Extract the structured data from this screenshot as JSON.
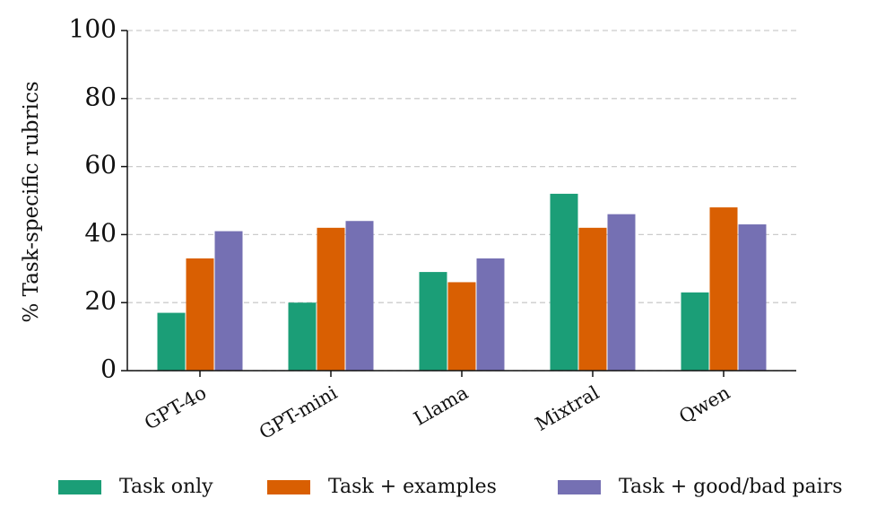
{
  "chart_data": {
    "type": "bar",
    "ylabel": "% Task-specific rubrics",
    "categories": [
      "GPT-4o",
      "GPT-mini",
      "Llama",
      "Mixtral",
      "Qwen"
    ],
    "series": [
      {
        "name": "Task only",
        "color": "#1b9e77",
        "values": [
          17,
          20,
          29,
          52,
          23
        ]
      },
      {
        "name": "Task + examples",
        "color": "#d95f02",
        "values": [
          33,
          42,
          26,
          42,
          48
        ]
      },
      {
        "name": "Task + good/bad pairs",
        "color": "#7570b3",
        "values": [
          41,
          44,
          33,
          46,
          43
        ]
      }
    ],
    "ylim": [
      0,
      100
    ],
    "yticks": [
      0,
      20,
      40,
      60,
      80,
      100
    ],
    "grid": true,
    "legend": "bottom"
  }
}
